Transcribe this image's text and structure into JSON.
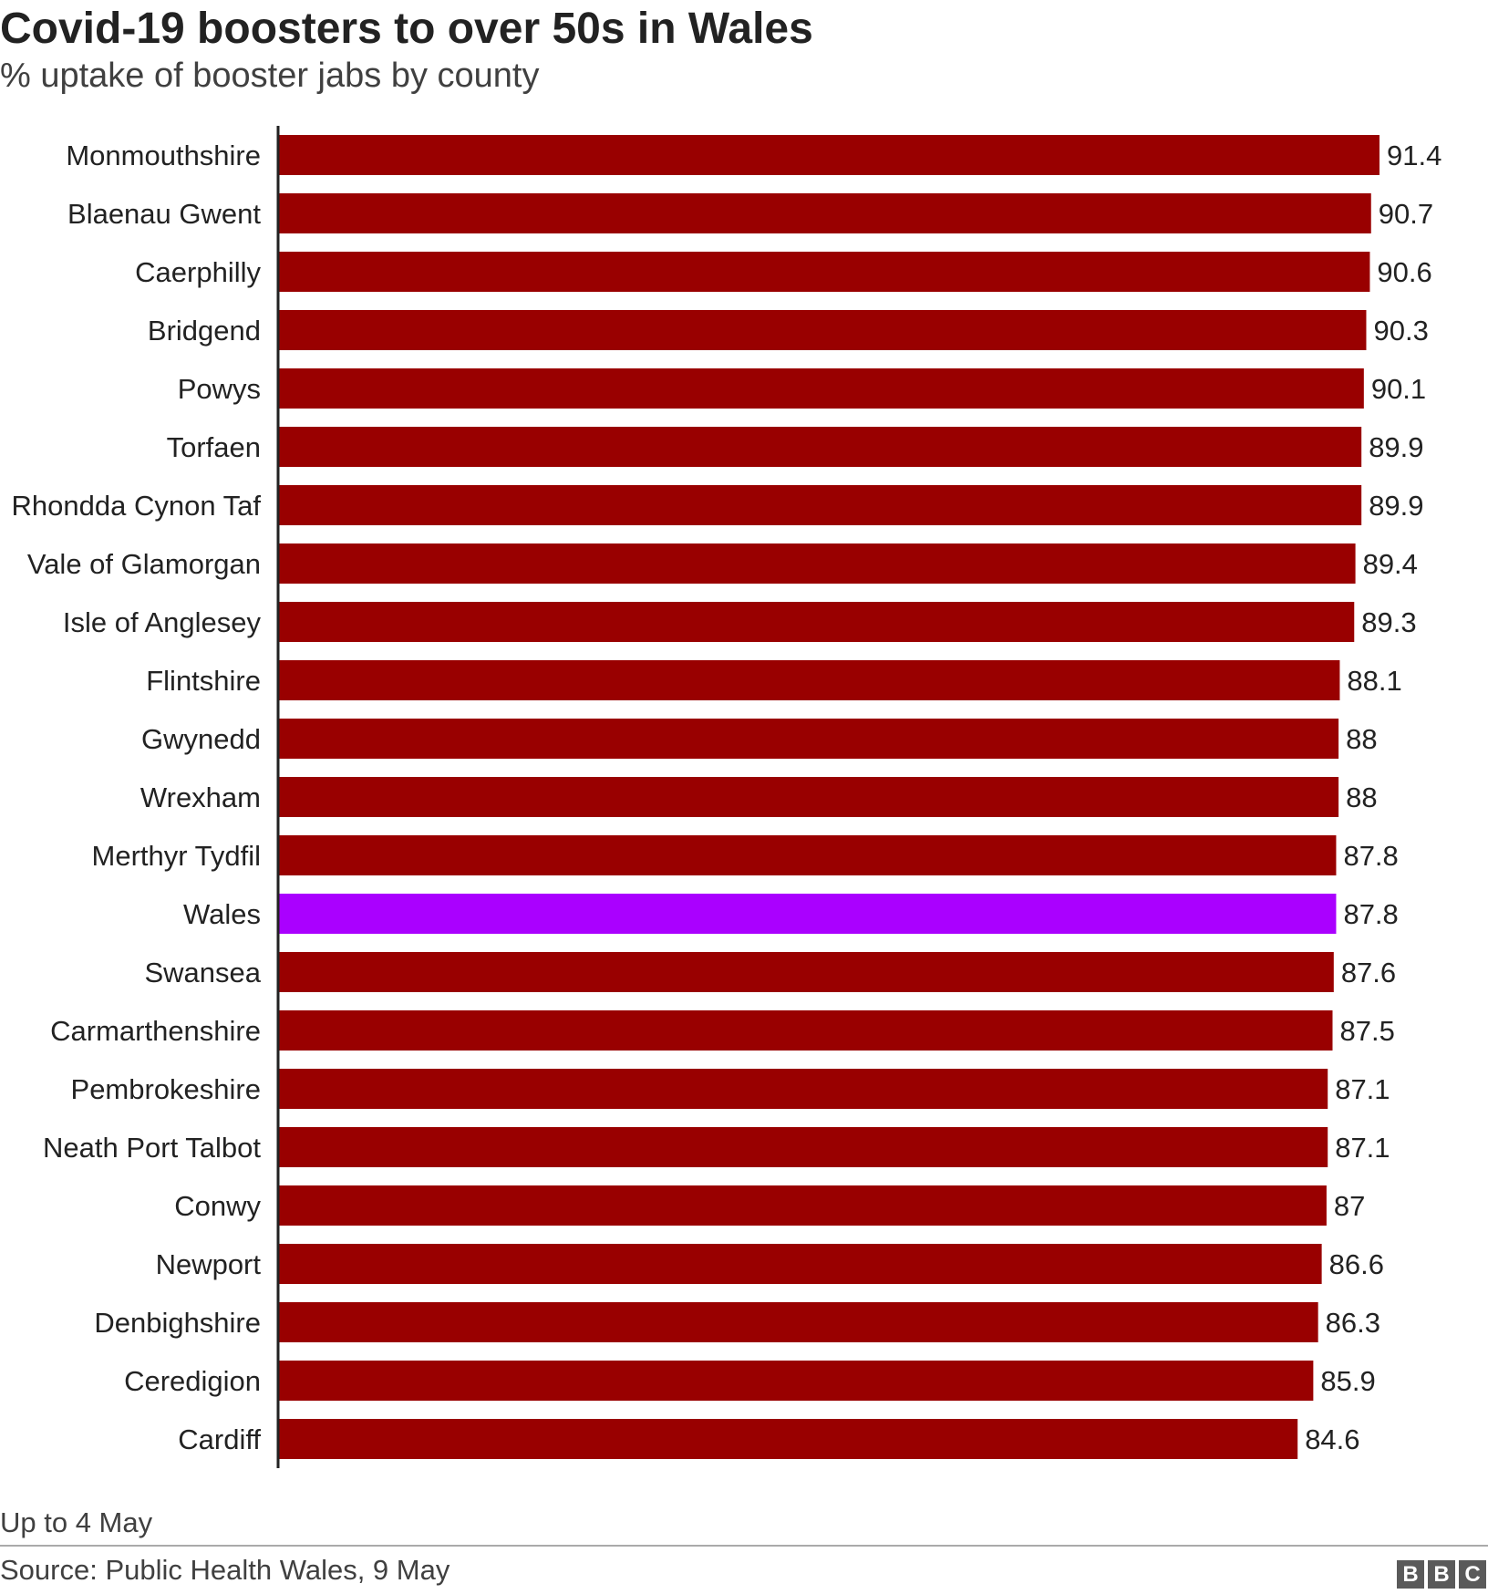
{
  "title": "Covid-19 boosters to over 50s in Wales",
  "subtitle": "% uptake of booster jabs by county",
  "note": "Up to 4 May",
  "source": "Source: Public Health Wales, 9 May",
  "logo": {
    "letters": [
      "B",
      "B",
      "C"
    ]
  },
  "colors": {
    "bar": "#990000",
    "highlight": "#aa00ff",
    "axis": "#222222",
    "text": "#222222"
  },
  "chart_data": {
    "type": "bar",
    "orientation": "horizontal",
    "title": "Covid-19 boosters to over 50s in Wales",
    "subtitle": "% uptake of booster jabs by county",
    "xlabel": "",
    "ylabel": "",
    "xlim": [
      0,
      91.4
    ],
    "grid": false,
    "categories": [
      "Monmouthshire",
      "Blaenau Gwent",
      "Caerphilly",
      "Bridgend",
      "Powys",
      "Torfaen",
      "Rhondda Cynon Taf",
      "Vale of Glamorgan",
      "Isle of Anglesey",
      "Flintshire",
      "Gwynedd",
      "Wrexham",
      "Merthyr Tydfil",
      "Wales",
      "Swansea",
      "Carmarthenshire",
      "Pembrokeshire",
      "Neath Port Talbot",
      "Conwy",
      "Newport",
      "Denbighshire",
      "Ceredigion",
      "Cardiff"
    ],
    "values": [
      91.4,
      90.7,
      90.6,
      90.3,
      90.1,
      89.9,
      89.9,
      89.4,
      89.3,
      88.1,
      88,
      88,
      87.8,
      87.8,
      87.6,
      87.5,
      87.1,
      87.1,
      87,
      86.6,
      86.3,
      85.9,
      84.6
    ],
    "value_labels": [
      "91.4",
      "90.7",
      "90.6",
      "90.3",
      "90.1",
      "89.9",
      "89.9",
      "89.4",
      "89.3",
      "88.1",
      "88",
      "88",
      "87.8",
      "87.8",
      "87.6",
      "87.5",
      "87.1",
      "87.1",
      "87",
      "86.6",
      "86.3",
      "85.9",
      "84.6"
    ],
    "highlight": "Wales"
  }
}
